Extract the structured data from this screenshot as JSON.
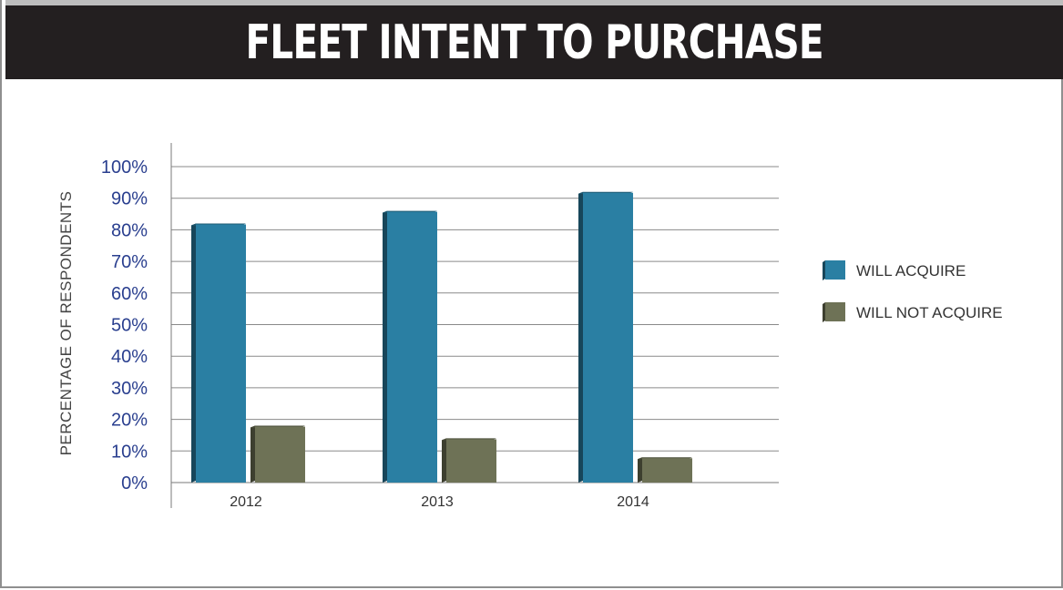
{
  "title": "FLEET INTENT TO PURCHASE",
  "chart_data": {
    "type": "bar",
    "title": "FLEET INTENT TO PURCHASE",
    "xlabel": "",
    "ylabel": "PERCENTAGE OF RESPONDENTS",
    "categories": [
      "2012",
      "2013",
      "2014"
    ],
    "series": [
      {
        "name": "WILL ACQUIRE",
        "values": [
          82,
          86,
          92
        ],
        "color": "#2a7fa3"
      },
      {
        "name": "WILL NOT ACQUIRE",
        "values": [
          18,
          14,
          8
        ],
        "color": "#6e7256"
      }
    ],
    "ylim": [
      0,
      100
    ],
    "yticks": [
      "0%",
      "10%",
      "20%",
      "30%",
      "40%",
      "50%",
      "60%",
      "70%",
      "80%",
      "90%",
      "100%"
    ],
    "grid": true,
    "legend": "right",
    "three_d": true
  }
}
